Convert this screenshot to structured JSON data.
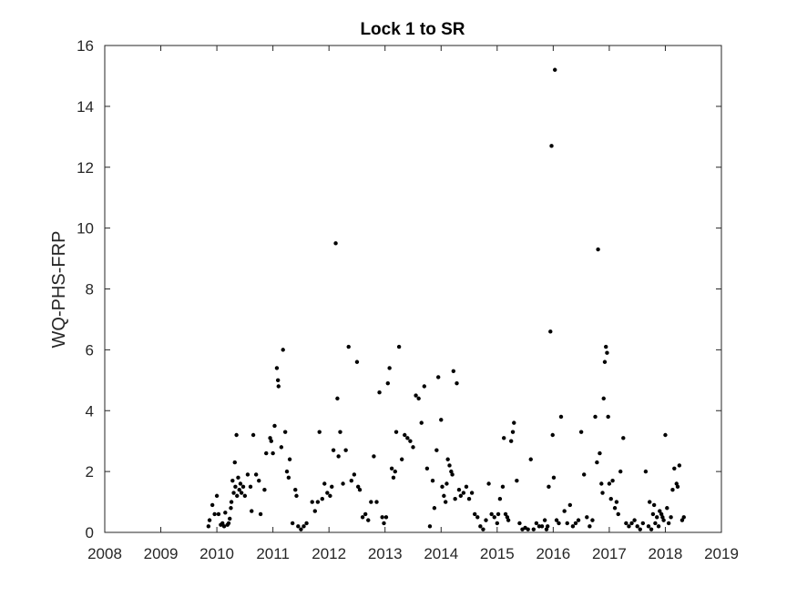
{
  "chart_data": {
    "type": "scatter",
    "title": "Lock 1 to SR",
    "xlabel": "",
    "ylabel": "WQ-PHS-FRP",
    "xlim": [
      2008,
      2019
    ],
    "ylim": [
      0,
      16
    ],
    "xticks": [
      "2008",
      "2009",
      "2010",
      "2011",
      "2012",
      "2013",
      "2014",
      "2015",
      "2016",
      "2017",
      "2018",
      "2019"
    ],
    "yticks": [
      "0",
      "2",
      "4",
      "6",
      "8",
      "10",
      "12",
      "14",
      "16"
    ],
    "grid": false,
    "marker_color": "#000000",
    "series": [
      {
        "points": [
          [
            2009.85,
            0.2
          ],
          [
            2009.87,
            0.4
          ],
          [
            2009.92,
            0.9
          ],
          [
            2009.96,
            0.6
          ],
          [
            2010.0,
            1.2
          ],
          [
            2010.03,
            0.6
          ],
          [
            2010.07,
            0.25
          ],
          [
            2010.1,
            0.3
          ],
          [
            2010.13,
            0.2
          ],
          [
            2010.15,
            0.65
          ],
          [
            2010.19,
            0.25
          ],
          [
            2010.21,
            0.3
          ],
          [
            2010.23,
            0.45
          ],
          [
            2010.25,
            0.8
          ],
          [
            2010.26,
            1.0
          ],
          [
            2010.28,
            1.7
          ],
          [
            2010.3,
            1.3
          ],
          [
            2010.32,
            2.3
          ],
          [
            2010.33,
            1.5
          ],
          [
            2010.35,
            3.2
          ],
          [
            2010.36,
            1.2
          ],
          [
            2010.38,
            1.8
          ],
          [
            2010.4,
            1.4
          ],
          [
            2010.42,
            1.6
          ],
          [
            2010.44,
            1.3
          ],
          [
            2010.47,
            1.5
          ],
          [
            2010.5,
            1.2
          ],
          [
            2010.55,
            1.9
          ],
          [
            2010.6,
            1.5
          ],
          [
            2010.62,
            0.7
          ],
          [
            2010.65,
            3.2
          ],
          [
            2010.7,
            1.9
          ],
          [
            2010.75,
            1.7
          ],
          [
            2010.78,
            0.6
          ],
          [
            2010.85,
            1.4
          ],
          [
            2010.88,
            2.6
          ],
          [
            2010.95,
            3.1
          ],
          [
            2010.97,
            3.0
          ],
          [
            2011.0,
            2.6
          ],
          [
            2011.03,
            3.5
          ],
          [
            2011.07,
            5.4
          ],
          [
            2011.09,
            5.0
          ],
          [
            2011.1,
            4.8
          ],
          [
            2011.15,
            2.8
          ],
          [
            2011.18,
            6.0
          ],
          [
            2011.22,
            3.3
          ],
          [
            2011.25,
            2.0
          ],
          [
            2011.28,
            1.8
          ],
          [
            2011.3,
            2.4
          ],
          [
            2011.35,
            0.3
          ],
          [
            2011.4,
            1.4
          ],
          [
            2011.42,
            1.2
          ],
          [
            2011.45,
            0.2
          ],
          [
            2011.5,
            0.1
          ],
          [
            2011.55,
            0.2
          ],
          [
            2011.6,
            0.3
          ],
          [
            2011.7,
            1.0
          ],
          [
            2011.75,
            0.7
          ],
          [
            2011.8,
            1.0
          ],
          [
            2011.83,
            3.3
          ],
          [
            2011.88,
            1.1
          ],
          [
            2011.92,
            1.6
          ],
          [
            2011.97,
            1.3
          ],
          [
            2012.02,
            1.2
          ],
          [
            2012.05,
            1.5
          ],
          [
            2012.08,
            2.7
          ],
          [
            2012.12,
            9.5
          ],
          [
            2012.15,
            4.4
          ],
          [
            2012.17,
            2.5
          ],
          [
            2012.2,
            3.3
          ],
          [
            2012.25,
            1.6
          ],
          [
            2012.3,
            2.7
          ],
          [
            2012.35,
            6.1
          ],
          [
            2012.4,
            1.7
          ],
          [
            2012.45,
            1.9
          ],
          [
            2012.5,
            5.6
          ],
          [
            2012.52,
            1.5
          ],
          [
            2012.55,
            1.4
          ],
          [
            2012.6,
            0.5
          ],
          [
            2012.65,
            0.6
          ],
          [
            2012.7,
            0.4
          ],
          [
            2012.75,
            1.0
          ],
          [
            2012.8,
            2.5
          ],
          [
            2012.85,
            1.0
          ],
          [
            2012.9,
            4.6
          ],
          [
            2012.95,
            0.5
          ],
          [
            2012.98,
            0.3
          ],
          [
            2013.02,
            0.5
          ],
          [
            2013.05,
            4.9
          ],
          [
            2013.08,
            5.4
          ],
          [
            2013.12,
            2.1
          ],
          [
            2013.15,
            1.8
          ],
          [
            2013.18,
            2.0
          ],
          [
            2013.2,
            3.3
          ],
          [
            2013.25,
            6.1
          ],
          [
            2013.3,
            2.4
          ],
          [
            2013.35,
            3.2
          ],
          [
            2013.4,
            3.1
          ],
          [
            2013.45,
            3.0
          ],
          [
            2013.5,
            2.8
          ],
          [
            2013.55,
            4.5
          ],
          [
            2013.6,
            4.4
          ],
          [
            2013.65,
            3.6
          ],
          [
            2013.7,
            4.8
          ],
          [
            2013.75,
            2.1
          ],
          [
            2013.8,
            0.2
          ],
          [
            2013.85,
            1.7
          ],
          [
            2013.88,
            0.8
          ],
          [
            2013.92,
            2.7
          ],
          [
            2013.95,
            5.1
          ],
          [
            2014.0,
            3.7
          ],
          [
            2014.02,
            1.5
          ],
          [
            2014.05,
            1.2
          ],
          [
            2014.08,
            1.0
          ],
          [
            2014.1,
            1.6
          ],
          [
            2014.12,
            2.4
          ],
          [
            2014.15,
            2.2
          ],
          [
            2014.18,
            2.0
          ],
          [
            2014.2,
            1.9
          ],
          [
            2014.22,
            5.3
          ],
          [
            2014.25,
            1.1
          ],
          [
            2014.28,
            4.9
          ],
          [
            2014.32,
            1.4
          ],
          [
            2014.35,
            1.2
          ],
          [
            2014.4,
            1.3
          ],
          [
            2014.45,
            1.5
          ],
          [
            2014.5,
            1.1
          ],
          [
            2014.55,
            1.3
          ],
          [
            2014.6,
            0.6
          ],
          [
            2014.65,
            0.5
          ],
          [
            2014.7,
            0.2
          ],
          [
            2014.75,
            0.1
          ],
          [
            2014.8,
            0.4
          ],
          [
            2014.85,
            1.6
          ],
          [
            2014.9,
            0.6
          ],
          [
            2014.95,
            0.5
          ],
          [
            2015.0,
            0.3
          ],
          [
            2015.02,
            0.6
          ],
          [
            2015.05,
            1.1
          ],
          [
            2015.1,
            1.5
          ],
          [
            2015.12,
            3.1
          ],
          [
            2015.15,
            0.6
          ],
          [
            2015.18,
            0.5
          ],
          [
            2015.2,
            0.4
          ],
          [
            2015.25,
            3.0
          ],
          [
            2015.28,
            3.3
          ],
          [
            2015.3,
            3.6
          ],
          [
            2015.35,
            1.7
          ],
          [
            2015.4,
            0.3
          ],
          [
            2015.45,
            0.1
          ],
          [
            2015.5,
            0.15
          ],
          [
            2015.55,
            0.1
          ],
          [
            2015.6,
            2.4
          ],
          [
            2015.65,
            0.1
          ],
          [
            2015.7,
            0.3
          ],
          [
            2015.75,
            0.2
          ],
          [
            2015.8,
            0.2
          ],
          [
            2015.85,
            0.4
          ],
          [
            2015.88,
            0.1
          ],
          [
            2015.9,
            0.2
          ],
          [
            2015.92,
            1.5
          ],
          [
            2015.95,
            6.6
          ],
          [
            2015.97,
            12.7
          ],
          [
            2015.99,
            3.2
          ],
          [
            2016.01,
            1.8
          ],
          [
            2016.03,
            15.2
          ],
          [
            2016.06,
            0.4
          ],
          [
            2016.1,
            0.3
          ],
          [
            2016.14,
            3.8
          ],
          [
            2016.2,
            0.7
          ],
          [
            2016.25,
            0.3
          ],
          [
            2016.3,
            0.9
          ],
          [
            2016.35,
            0.2
          ],
          [
            2016.4,
            0.3
          ],
          [
            2016.45,
            0.4
          ],
          [
            2016.5,
            3.3
          ],
          [
            2016.55,
            1.9
          ],
          [
            2016.6,
            0.5
          ],
          [
            2016.65,
            0.2
          ],
          [
            2016.7,
            0.4
          ],
          [
            2016.75,
            3.8
          ],
          [
            2016.78,
            2.3
          ],
          [
            2016.8,
            9.3
          ],
          [
            2016.83,
            2.6
          ],
          [
            2016.86,
            1.6
          ],
          [
            2016.88,
            1.3
          ],
          [
            2016.9,
            4.4
          ],
          [
            2016.92,
            5.6
          ],
          [
            2016.94,
            6.1
          ],
          [
            2016.96,
            5.9
          ],
          [
            2016.98,
            3.8
          ],
          [
            2017.0,
            1.6
          ],
          [
            2017.03,
            1.1
          ],
          [
            2017.06,
            1.7
          ],
          [
            2017.1,
            0.8
          ],
          [
            2017.13,
            1.0
          ],
          [
            2017.16,
            0.6
          ],
          [
            2017.2,
            2.0
          ],
          [
            2017.25,
            3.1
          ],
          [
            2017.3,
            0.3
          ],
          [
            2017.35,
            0.2
          ],
          [
            2017.4,
            0.3
          ],
          [
            2017.45,
            0.4
          ],
          [
            2017.5,
            0.2
          ],
          [
            2017.55,
            0.1
          ],
          [
            2017.6,
            0.3
          ],
          [
            2017.65,
            2.0
          ],
          [
            2017.7,
            0.2
          ],
          [
            2017.72,
            1.0
          ],
          [
            2017.75,
            0.1
          ],
          [
            2017.78,
            0.6
          ],
          [
            2017.8,
            0.9
          ],
          [
            2017.82,
            0.3
          ],
          [
            2017.85,
            0.5
          ],
          [
            2017.88,
            0.2
          ],
          [
            2017.9,
            0.7
          ],
          [
            2017.93,
            0.6
          ],
          [
            2017.95,
            0.5
          ],
          [
            2017.97,
            0.4
          ],
          [
            2018.0,
            3.2
          ],
          [
            2018.03,
            0.8
          ],
          [
            2018.06,
            0.3
          ],
          [
            2018.1,
            0.5
          ],
          [
            2018.13,
            1.4
          ],
          [
            2018.16,
            2.1
          ],
          [
            2018.2,
            1.6
          ],
          [
            2018.22,
            1.5
          ],
          [
            2018.25,
            2.2
          ],
          [
            2018.3,
            0.4
          ],
          [
            2018.33,
            0.5
          ]
        ]
      }
    ]
  }
}
